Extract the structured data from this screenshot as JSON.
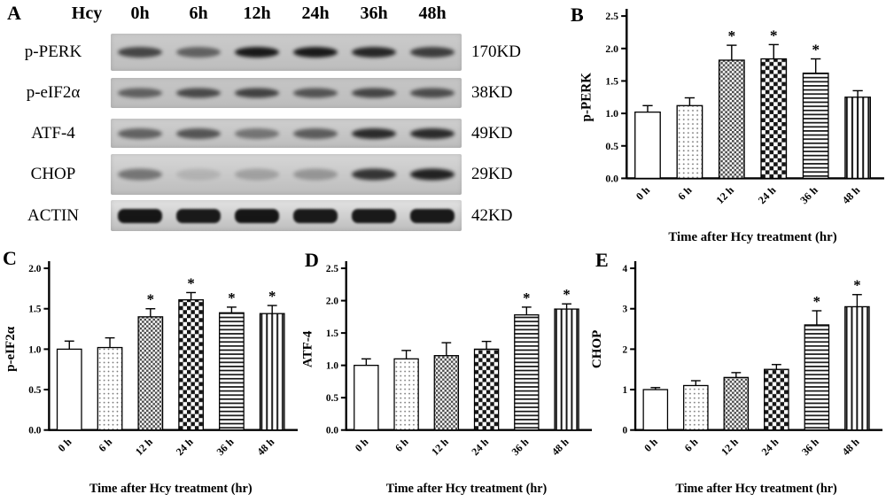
{
  "panel_labels": {
    "a": "A",
    "b": "B",
    "c": "C",
    "d": "D",
    "e": "E"
  },
  "blot": {
    "treatment_label": "Hcy",
    "lane_headers": [
      "0h",
      "6h",
      "12h",
      "24h",
      "36h",
      "48h"
    ],
    "rows": [
      {
        "protein": "p-PERK",
        "weight": "170KD",
        "band_intensities": [
          0.7,
          0.55,
          0.95,
          0.95,
          0.88,
          0.75
        ],
        "strip_shade": "#cbcbcb",
        "band_height": 12
      },
      {
        "protein": "p-eIF2α",
        "weight": "38KD",
        "band_intensities": [
          0.55,
          0.68,
          0.72,
          0.62,
          0.7,
          0.66
        ],
        "strip_shade": "#c5c5c5",
        "band_height": 11
      },
      {
        "protein": "ATF-4",
        "weight": "49KD",
        "band_intensities": [
          0.55,
          0.62,
          0.45,
          0.58,
          0.85,
          0.85
        ],
        "strip_shade": "#cfcfcf",
        "band_height": 12
      },
      {
        "protein": "CHOP",
        "weight": "29KD",
        "band_intensities": [
          0.45,
          0.12,
          0.22,
          0.28,
          0.8,
          0.9
        ],
        "strip_shade": "#d6d6d6",
        "band_height": 13
      },
      {
        "protein": "ACTIN",
        "weight": "42KD",
        "band_intensities": [
          0.97,
          0.95,
          0.97,
          0.95,
          0.95,
          0.95
        ],
        "strip_shade": "#e3e3e3",
        "band_height": 16
      }
    ]
  },
  "bar_pattern_order": [
    "open",
    "dots",
    "checker-fine",
    "checker",
    "hlines",
    "vlines"
  ],
  "chart_data": [
    {
      "id": "b",
      "type": "bar",
      "panel": "B",
      "ylabel": "p-PERK",
      "xlabel": "Time after Hcy treatment (hr)",
      "categories": [
        "0 h",
        "6 h",
        "12 h",
        "24 h",
        "36 h",
        "48 h"
      ],
      "values": [
        1.02,
        1.12,
        1.82,
        1.84,
        1.62,
        1.25
      ],
      "errors": [
        0.1,
        0.12,
        0.23,
        0.22,
        0.22,
        0.1
      ],
      "significant": [
        false,
        false,
        true,
        true,
        true,
        false
      ],
      "ylim": [
        0,
        2.5
      ],
      "ytick_step": 0.5,
      "ytick_decimals": 1,
      "grid": false,
      "legend": "none"
    },
    {
      "id": "c",
      "type": "bar",
      "panel": "C",
      "ylabel": "p-eIF2α",
      "xlabel": "Time after Hcy treatment (hr)",
      "categories": [
        "0 h",
        "6 h",
        "12 h",
        "24 h",
        "36 h",
        "48 h"
      ],
      "values": [
        1.0,
        1.02,
        1.4,
        1.61,
        1.45,
        1.44
      ],
      "errors": [
        0.1,
        0.12,
        0.1,
        0.09,
        0.07,
        0.1
      ],
      "significant": [
        false,
        false,
        true,
        true,
        true,
        true
      ],
      "ylim": [
        0,
        2.0
      ],
      "ytick_step": 0.5,
      "ytick_decimals": 1,
      "grid": false,
      "legend": "none"
    },
    {
      "id": "d",
      "type": "bar",
      "panel": "D",
      "ylabel": "ATF-4",
      "xlabel": "Time after Hcy treatment (hr)",
      "categories": [
        "0 h",
        "6 h",
        "12 h",
        "24 h",
        "36 h",
        "48 h"
      ],
      "values": [
        1.0,
        1.1,
        1.15,
        1.25,
        1.78,
        1.87
      ],
      "errors": [
        0.1,
        0.13,
        0.2,
        0.12,
        0.12,
        0.08
      ],
      "significant": [
        false,
        false,
        false,
        false,
        true,
        true
      ],
      "ylim": [
        0,
        2.5
      ],
      "ytick_step": 0.5,
      "ytick_decimals": 1,
      "grid": false,
      "legend": "none"
    },
    {
      "id": "e",
      "type": "bar",
      "panel": "E",
      "ylabel": "CHOP",
      "xlabel": "Time after Hcy treatment (hr)",
      "categories": [
        "0 h",
        "6 h",
        "12 h",
        "24 h",
        "36 h",
        "48 h"
      ],
      "values": [
        1.0,
        1.1,
        1.3,
        1.5,
        2.6,
        3.05
      ],
      "errors": [
        0.05,
        0.12,
        0.12,
        0.12,
        0.35,
        0.3
      ],
      "significant": [
        false,
        false,
        false,
        false,
        true,
        true
      ],
      "ylim": [
        0,
        4
      ],
      "ytick_step": 1,
      "ytick_decimals": 0,
      "grid": false,
      "legend": "none"
    }
  ]
}
